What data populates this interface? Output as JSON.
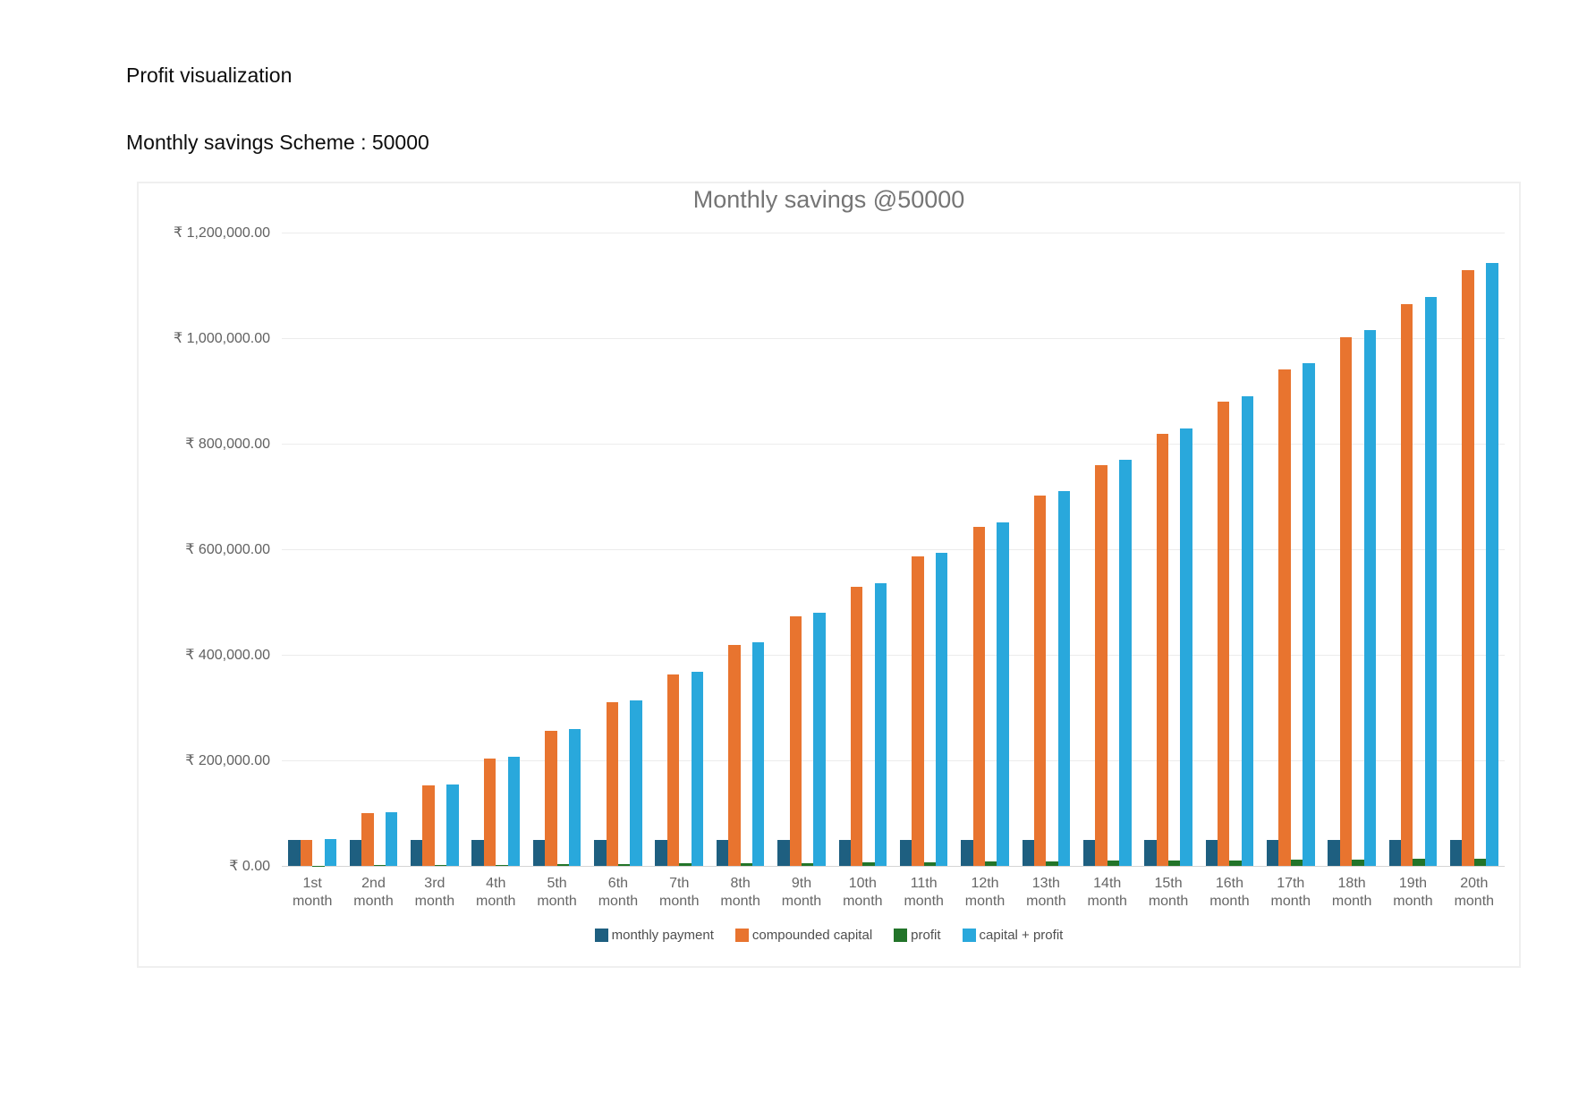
{
  "page": {
    "heading": "Profit visualization",
    "subheading": "Monthly savings Scheme : 50000"
  },
  "chart_data": {
    "type": "bar",
    "title": "Monthly savings @50000",
    "currency": "₹",
    "categories": [
      "1st",
      "2nd",
      "3rd",
      "4th",
      "5th",
      "6th",
      "7th",
      "8th",
      "9th",
      "10th",
      "11th",
      "12th",
      "13th",
      "14th",
      "15th",
      "16th",
      "17th",
      "18th",
      "19th",
      "20th"
    ],
    "category_suffix": "month",
    "ylim": [
      0,
      1200000
    ],
    "grid": true,
    "legend_position": "bottom",
    "y_ticks": [
      {
        "value": 1200000,
        "label": "₹ 1,200,000.00"
      },
      {
        "value": 1000000,
        "label": "₹ 1,000,000.00"
      },
      {
        "value": 800000,
        "label": "₹ 800,000.00"
      },
      {
        "value": 600000,
        "label": "₹ 600,000.00"
      },
      {
        "value": 400000,
        "label": "₹ 400,000.00"
      },
      {
        "value": 200000,
        "label": "₹ 200,000.00"
      },
      {
        "value": 0,
        "label": "₹ 0.00"
      }
    ],
    "series": [
      {
        "name": "monthly payment",
        "color": "#1E5F80",
        "values": [
          50000,
          50000,
          50000,
          50000,
          50000,
          50000,
          50000,
          50000,
          50000,
          50000,
          50000,
          50000,
          50000,
          50000,
          50000,
          50000,
          50000,
          50000,
          50000,
          50000
        ]
      },
      {
        "name": "compounded capital",
        "color": "#E8742F",
        "values": [
          50000.0,
          100625.0,
          151882.81,
          203781.35,
          256328.61,
          309532.72,
          363401.88,
          417944.4,
          473168.71,
          529083.32,
          585696.86,
          643018.07,
          701055.8,
          759818.99,
          819316.73,
          879558.19,
          940552.67,
          1002309.58,
          1064838.45,
          1128148.93
        ]
      },
      {
        "name": "profit",
        "color": "#227429",
        "values": [
          625.0,
          1257.81,
          1898.54,
          2547.27,
          3204.11,
          3869.16,
          4542.52,
          5224.31,
          5914.61,
          6613.54,
          7321.21,
          8037.73,
          8763.2,
          9497.74,
          10241.46,
          10994.48,
          11756.91,
          12528.87,
          13310.48,
          14101.86
        ]
      },
      {
        "name": "capital + profit",
        "color": "#29A8DC",
        "values": [
          50625.0,
          101882.81,
          153781.35,
          206328.62,
          259532.72,
          313401.88,
          367944.4,
          423168.71,
          479083.32,
          535696.86,
          593018.07,
          651055.8,
          709819.0,
          769316.73,
          829558.19,
          890552.67,
          952309.58,
          1014838.45,
          1078148.93,
          1142250.79
        ]
      }
    ]
  }
}
